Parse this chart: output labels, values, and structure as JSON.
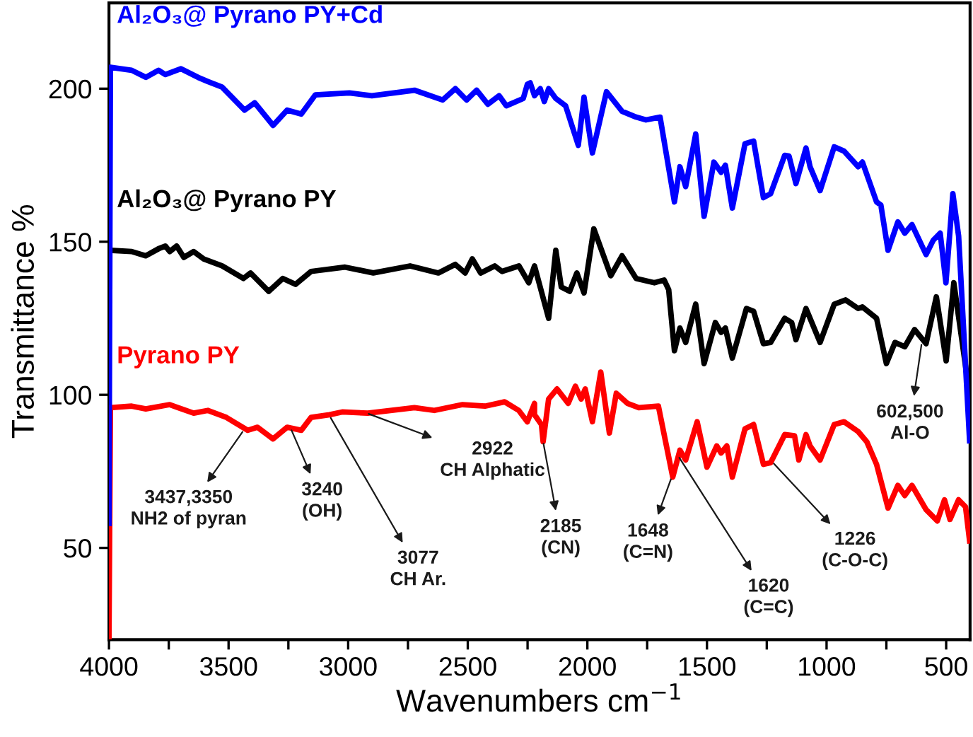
{
  "chart_data": {
    "type": "line",
    "xlabel": "Wavenumbers cm$^{−1}$",
    "ylabel": "Transmittance %",
    "xlim": [
      4000,
      400
    ],
    "ylim": [
      20,
      228
    ],
    "xticks": [
      4000,
      {
        "value": 3750,
        "label": null
      },
      3500,
      {
        "value": 3250,
        "label": null
      },
      3000,
      {
        "value": 2750,
        "label": null
      },
      2500,
      {
        "value": 2250,
        "label": null
      },
      2000,
      {
        "value": 1750,
        "label": null
      },
      1500,
      {
        "value": 1250,
        "label": null
      },
      1000,
      {
        "value": 750,
        "label": null
      },
      500
    ],
    "yticks": [
      50,
      100,
      150,
      200
    ],
    "grid": false,
    "legend": false,
    "marker": "none",
    "line_style": "solid",
    "series": [
      {
        "name": "Al₂O₃@ Pyrano PY+Cd",
        "color": "#0000ff",
        "x": [
          4000,
          3994,
          3905,
          3846,
          3793,
          3764,
          3699,
          3628,
          3586,
          3527,
          3433,
          3391,
          3314,
          3255,
          3196,
          3137,
          2995,
          2901,
          2723,
          2605,
          2552,
          2505,
          2463,
          2416,
          2369,
          2339,
          2268,
          2251,
          2239,
          2221,
          2197,
          2180,
          2162,
          2132,
          2091,
          2038,
          2014,
          1979,
          1920,
          1855,
          1796,
          1755,
          1696,
          1636,
          1613,
          1589,
          1547,
          1512,
          1471,
          1441,
          1423,
          1394,
          1341,
          1305,
          1264,
          1234,
          1175,
          1157,
          1128,
          1086,
          1069,
          1027,
          968,
          927,
          868,
          850,
          791,
          773,
          743,
          702,
          673,
          643,
          584,
          554,
          525,
          501,
          472,
          448,
          402
        ],
        "values": [
          58,
          207,
          206,
          203.7,
          206,
          204.6,
          206.5,
          203.7,
          202.3,
          200.5,
          193,
          195.4,
          188,
          193,
          191.7,
          198,
          198.6,
          197.7,
          199.5,
          196.3,
          200,
          196.3,
          199.5,
          194.9,
          197.7,
          194.4,
          196.8,
          201.4,
          201.9,
          197.7,
          200,
          195.8,
          200,
          196.8,
          194.4,
          181.5,
          197.2,
          179,
          199,
          192.6,
          190.7,
          189.8,
          190.7,
          163,
          174.5,
          168,
          185.2,
          158.3,
          176,
          172.7,
          175,
          161,
          182,
          182.9,
          164.4,
          165.7,
          178.2,
          178,
          169,
          180.6,
          174.5,
          166.7,
          181,
          179.6,
          174.5,
          176,
          163,
          162,
          147.2,
          156.5,
          152.8,
          155.6,
          145.8,
          150.5,
          152.8,
          136.6,
          165.7,
          151.9,
          85
        ]
      },
      {
        "name": "Al₂O₃@ Pyrano PY",
        "color": "#000000",
        "x": [
          3994,
          3905,
          3846,
          3793,
          3764,
          3746,
          3717,
          3687,
          3646,
          3604,
          3527,
          3438,
          3408,
          3332,
          3273,
          3220,
          3155,
          3013,
          2895,
          2741,
          2623,
          2552,
          2511,
          2481,
          2446,
          2387,
          2357,
          2286,
          2245,
          2221,
          2162,
          2132,
          2109,
          2074,
          2044,
          2014,
          1973,
          1902,
          1855,
          1796,
          1720,
          1679,
          1660,
          1636,
          1613,
          1589,
          1547,
          1512,
          1465,
          1441,
          1423,
          1394,
          1335,
          1305,
          1264,
          1234,
          1175,
          1146,
          1128,
          1086,
          1069,
          1027,
          968,
          921,
          868,
          850,
          791,
          750,
          714,
          673,
          632,
          584,
          541,
          500,
          468,
          402
        ],
        "values": [
          147.2,
          146.8,
          145.4,
          147.7,
          148.6,
          146.8,
          148.6,
          144.9,
          146.8,
          144.4,
          142.1,
          138,
          139.8,
          133.8,
          138,
          136.1,
          140.3,
          141.7,
          139.8,
          142.1,
          139.8,
          142.6,
          139.8,
          144.4,
          139.8,
          142.1,
          140.3,
          142.1,
          136.6,
          142.1,
          125,
          147.2,
          135.2,
          133.8,
          139.8,
          133.3,
          154.2,
          138.9,
          145.4,
          138,
          136.6,
          137.5,
          134.3,
          114.4,
          121.8,
          117.1,
          129.6,
          110.2,
          123.6,
          120.4,
          121.8,
          112,
          128.2,
          127.3,
          116.7,
          117.1,
          125,
          123.6,
          118,
          128.2,
          125,
          117.1,
          129.6,
          131,
          128.2,
          128.7,
          125,
          110.2,
          117.1,
          115.7,
          121.3,
          116.7,
          132,
          111.1,
          136.6,
          100
        ]
      },
      {
        "name": "Pyrano PY",
        "color": "#ff0000",
        "x": [
          4000,
          3994,
          3905,
          3846,
          3746,
          3646,
          3586,
          3509,
          3420,
          3379,
          3314,
          3255,
          3196,
          3155,
          3078,
          3025,
          2918,
          2723,
          2640,
          2522,
          2428,
          2346,
          2287,
          2251,
          2221,
          2221,
          2192,
          2185,
          2162,
          2127,
          2080,
          2050,
          2026,
          2009,
          1979,
          1944,
          1908,
          1879,
          1832,
          1785,
          1703,
          1643,
          1613,
          1589,
          1541,
          1500,
          1459,
          1441,
          1417,
          1394,
          1341,
          1305,
          1264,
          1234,
          1175,
          1134,
          1116,
          1086,
          1069,
          1027,
          968,
          927,
          868,
          832,
          791,
          743,
          702,
          673,
          643,
          584,
          537,
          507,
          484,
          448,
          419,
          402
        ],
        "values": [
          21,
          95.8,
          96.3,
          95.4,
          96.8,
          94,
          94.9,
          92.6,
          88.4,
          89.4,
          85.6,
          89.4,
          88.4,
          92.6,
          93.5,
          94.4,
          94,
          95.8,
          94.9,
          96.8,
          96.3,
          97.7,
          94.9,
          91.2,
          97.2,
          93.5,
          90.3,
          84.7,
          98.6,
          101.9,
          97.2,
          102.8,
          98.6,
          101.9,
          91.2,
          107.4,
          87.5,
          100.5,
          97.2,
          95.8,
          96.3,
          73.1,
          81.9,
          78.7,
          91.2,
          76.4,
          83.3,
          81,
          83.3,
          73.1,
          88.9,
          90.3,
          77.3,
          77.8,
          87,
          86.6,
          78.7,
          87,
          83.3,
          78.7,
          90.3,
          91.2,
          88,
          84.7,
          77.3,
          63,
          70.4,
          67.1,
          70.4,
          62.5,
          58.8,
          65.7,
          59.3,
          65.7,
          63.4,
          52.3
        ]
      }
    ],
    "annotations": [
      {
        "text": "3437,3350\nNH2 of pyran",
        "x": 3437,
        "y": 88.4
      },
      {
        "text": "3240\n(OH)",
        "x": 3240,
        "y": 89
      },
      {
        "text": "3077\nCH Ar.",
        "x": 3077,
        "y": 93
      },
      {
        "text": "2922\nCH Alphatic",
        "x": 2922,
        "y": 94
      },
      {
        "text": "2185\n(CN)",
        "x": 2185,
        "y": 84.7
      },
      {
        "text": "1648\n(C=N)",
        "x": 1648,
        "y": 73
      },
      {
        "text": "1620\n(C=C)",
        "x": 1620,
        "y": 80
      },
      {
        "text": "1226\n(C-O-C)",
        "x": 1226,
        "y": 78
      },
      {
        "text": "602,500\nAl-O",
        "x": 602,
        "y": 117
      }
    ]
  }
}
